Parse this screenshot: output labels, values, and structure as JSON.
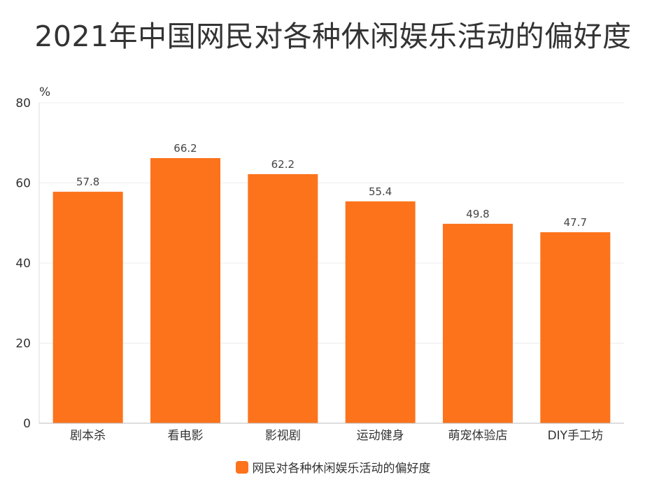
{
  "chart_data": {
    "type": "bar",
    "title": "2021年中国网民对各种休闲娱乐活动的偏好度",
    "ylabel": "%",
    "xlabel": "",
    "ylim": [
      0,
      80
    ],
    "yticks": [
      0,
      20,
      40,
      60,
      80
    ],
    "categories": [
      "剧本杀",
      "看电影",
      "影视剧",
      "运动健身",
      "萌宠体验店",
      "DIY手工坊"
    ],
    "series": [
      {
        "name": "网民对各种休闲娱乐活动的偏好度",
        "values": [
          57.8,
          66.2,
          62.2,
          55.4,
          49.8,
          47.7
        ],
        "color": "#fc731c"
      }
    ],
    "grid": true,
    "legend_position": "bottom"
  }
}
